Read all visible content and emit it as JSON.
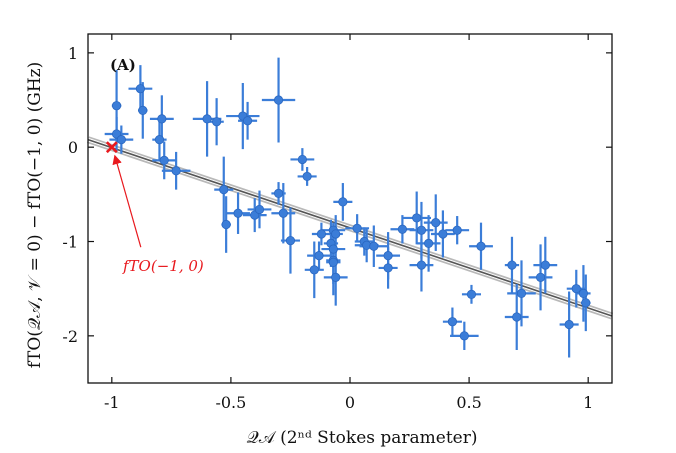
{
  "chart_data": {
    "type": "scatter",
    "panel_label": "(A)",
    "xlabel": "𝒬𝒜 (2ⁿᵈ Stokes parameter)",
    "ylabel": "fTO(𝒬𝒜, 𝒱 = 0) − fTO(−1, 0) (GHz)",
    "xlim": [
      -1.1,
      1.1
    ],
    "ylim": [
      -2.5,
      1.2
    ],
    "x_ticks": [
      -1,
      -0.5,
      0,
      0.5,
      1
    ],
    "x_tick_labels": [
      "-1",
      "-0.5",
      "0",
      "0.5",
      "1"
    ],
    "y_ticks": [
      -2,
      -1,
      0,
      1
    ],
    "y_tick_labels": [
      "-2",
      "-1",
      "0",
      "1"
    ],
    "grid": false,
    "colors": {
      "points": "#3b7dd8",
      "fit": "#555555",
      "reference": "#e8191e"
    },
    "fit_line": {
      "x": [
        -1.1,
        1.1
      ],
      "y": [
        0.08,
        -1.79
      ]
    },
    "reference_point": {
      "x": -1.0,
      "y": 0.0,
      "label": "fTO(−1, 0)"
    },
    "series": [
      {
        "points": [
          {
            "x": -0.98,
            "y": 0.44,
            "xerr": 0.02,
            "yerr": 0.38
          },
          {
            "x": -0.98,
            "y": 0.14,
            "xerr": 0.05,
            "yerr": 0.18
          },
          {
            "x": -0.96,
            "y": 0.08,
            "xerr": 0.05,
            "yerr": 0.15
          },
          {
            "x": -0.88,
            "y": 0.62,
            "xerr": 0.05,
            "yerr": 0.25
          },
          {
            "x": -0.87,
            "y": 0.39,
            "xerr": 0.02,
            "yerr": 0.3
          },
          {
            "x": -0.79,
            "y": 0.3,
            "xerr": 0.05,
            "yerr": 0.25
          },
          {
            "x": -0.8,
            "y": 0.08,
            "xerr": 0.03,
            "yerr": 0.22
          },
          {
            "x": -0.78,
            "y": -0.14,
            "xerr": 0.05,
            "yerr": 0.2
          },
          {
            "x": -0.73,
            "y": -0.25,
            "xerr": 0.06,
            "yerr": 0.2
          },
          {
            "x": -0.6,
            "y": 0.3,
            "xerr": 0.06,
            "yerr": 0.4
          },
          {
            "x": -0.56,
            "y": 0.27,
            "xerr": 0.03,
            "yerr": 0.25
          },
          {
            "x": -0.45,
            "y": 0.33,
            "xerr": 0.07,
            "yerr": 0.35
          },
          {
            "x": -0.43,
            "y": 0.28,
            "xerr": 0.04,
            "yerr": 0.2
          },
          {
            "x": -0.3,
            "y": 0.5,
            "xerr": 0.07,
            "yerr": 0.45
          },
          {
            "x": -0.53,
            "y": -0.45,
            "xerr": 0.04,
            "yerr": 0.35
          },
          {
            "x": -0.47,
            "y": -0.7,
            "xerr": 0.05,
            "yerr": 0.22
          },
          {
            "x": -0.52,
            "y": -0.82,
            "xerr": 0.02,
            "yerr": 0.3
          },
          {
            "x": -0.4,
            "y": -0.72,
            "xerr": 0.05,
            "yerr": 0.18
          },
          {
            "x": -0.38,
            "y": -0.66,
            "xerr": 0.05,
            "yerr": 0.2
          },
          {
            "x": -0.3,
            "y": -0.49,
            "xerr": 0.03,
            "yerr": 0.12
          },
          {
            "x": -0.28,
            "y": -0.7,
            "xerr": 0.05,
            "yerr": 0.32
          },
          {
            "x": -0.25,
            "y": -0.99,
            "xerr": 0.04,
            "yerr": 0.35
          },
          {
            "x": -0.2,
            "y": -0.13,
            "xerr": 0.05,
            "yerr": 0.12
          },
          {
            "x": -0.18,
            "y": -0.31,
            "xerr": 0.04,
            "yerr": 0.1
          },
          {
            "x": -0.13,
            "y": -1.15,
            "xerr": 0.05,
            "yerr": 0.15
          },
          {
            "x": -0.15,
            "y": -1.3,
            "xerr": 0.04,
            "yerr": 0.3
          },
          {
            "x": -0.12,
            "y": -0.92,
            "xerr": 0.04,
            "yerr": 0.12
          },
          {
            "x": -0.08,
            "y": -1.02,
            "xerr": 0.03,
            "yerr": 0.25
          },
          {
            "x": -0.07,
            "y": -1.08,
            "xerr": 0.05,
            "yerr": 0.2
          },
          {
            "x": -0.07,
            "y": -1.2,
            "xerr": 0.03,
            "yerr": 0.25
          },
          {
            "x": -0.07,
            "y": -1.22,
            "xerr": 0.03,
            "yerr": 0.35
          },
          {
            "x": -0.06,
            "y": -1.38,
            "xerr": 0.05,
            "yerr": 0.3
          },
          {
            "x": -0.07,
            "y": -0.88,
            "xerr": 0.05,
            "yerr": 0.08
          },
          {
            "x": -0.03,
            "y": -0.58,
            "xerr": 0.04,
            "yerr": 0.2
          },
          {
            "x": -0.06,
            "y": -0.92,
            "xerr": 0.03,
            "yerr": 0.2
          },
          {
            "x": 0.03,
            "y": -0.86,
            "xerr": 0.05,
            "yerr": 0.15
          },
          {
            "x": 0.06,
            "y": -1.0,
            "xerr": 0.04,
            "yerr": 0.15
          },
          {
            "x": 0.07,
            "y": -1.04,
            "xerr": 0.05,
            "yerr": 0.18
          },
          {
            "x": 0.1,
            "y": -1.05,
            "xerr": 0.06,
            "yerr": 0.22
          },
          {
            "x": 0.16,
            "y": -1.15,
            "xerr": 0.05,
            "yerr": 0.25
          },
          {
            "x": 0.16,
            "y": -1.28,
            "xerr": 0.04,
            "yerr": 0.22
          },
          {
            "x": 0.22,
            "y": -0.87,
            "xerr": 0.05,
            "yerr": 0.15
          },
          {
            "x": 0.28,
            "y": -0.75,
            "xerr": 0.06,
            "yerr": 0.28
          },
          {
            "x": 0.3,
            "y": -0.88,
            "xerr": 0.05,
            "yerr": 0.3
          },
          {
            "x": 0.3,
            "y": -1.25,
            "xerr": 0.05,
            "yerr": 0.28
          },
          {
            "x": 0.33,
            "y": -1.02,
            "xerr": 0.05,
            "yerr": 0.3
          },
          {
            "x": 0.36,
            "y": -0.8,
            "xerr": 0.05,
            "yerr": 0.3
          },
          {
            "x": 0.39,
            "y": -0.92,
            "xerr": 0.05,
            "yerr": 0.25
          },
          {
            "x": 0.43,
            "y": -1.85,
            "xerr": 0.04,
            "yerr": 0.15
          },
          {
            "x": 0.45,
            "y": -0.88,
            "xerr": 0.05,
            "yerr": 0.15
          },
          {
            "x": 0.48,
            "y": -2.0,
            "xerr": 0.06,
            "yerr": 0.15
          },
          {
            "x": 0.51,
            "y": -1.56,
            "xerr": 0.04,
            "yerr": 0.1
          },
          {
            "x": 0.55,
            "y": -1.05,
            "xerr": 0.05,
            "yerr": 0.25
          },
          {
            "x": 0.68,
            "y": -1.25,
            "xerr": 0.03,
            "yerr": 0.3
          },
          {
            "x": 0.7,
            "y": -1.8,
            "xerr": 0.05,
            "yerr": 0.35
          },
          {
            "x": 0.72,
            "y": -1.55,
            "xerr": 0.06,
            "yerr": 0.35
          },
          {
            "x": 0.8,
            "y": -1.38,
            "xerr": 0.05,
            "yerr": 0.35
          },
          {
            "x": 0.82,
            "y": -1.25,
            "xerr": 0.05,
            "yerr": 0.3
          },
          {
            "x": 0.92,
            "y": -1.88,
            "xerr": 0.04,
            "yerr": 0.35
          },
          {
            "x": 0.95,
            "y": -1.5,
            "xerr": 0.04,
            "yerr": 0.2
          },
          {
            "x": 0.98,
            "y": -1.55,
            "xerr": 0.03,
            "yerr": 0.3
          },
          {
            "x": 0.99,
            "y": -1.65,
            "xerr": 0.02,
            "yerr": 0.3
          }
        ]
      }
    ]
  }
}
